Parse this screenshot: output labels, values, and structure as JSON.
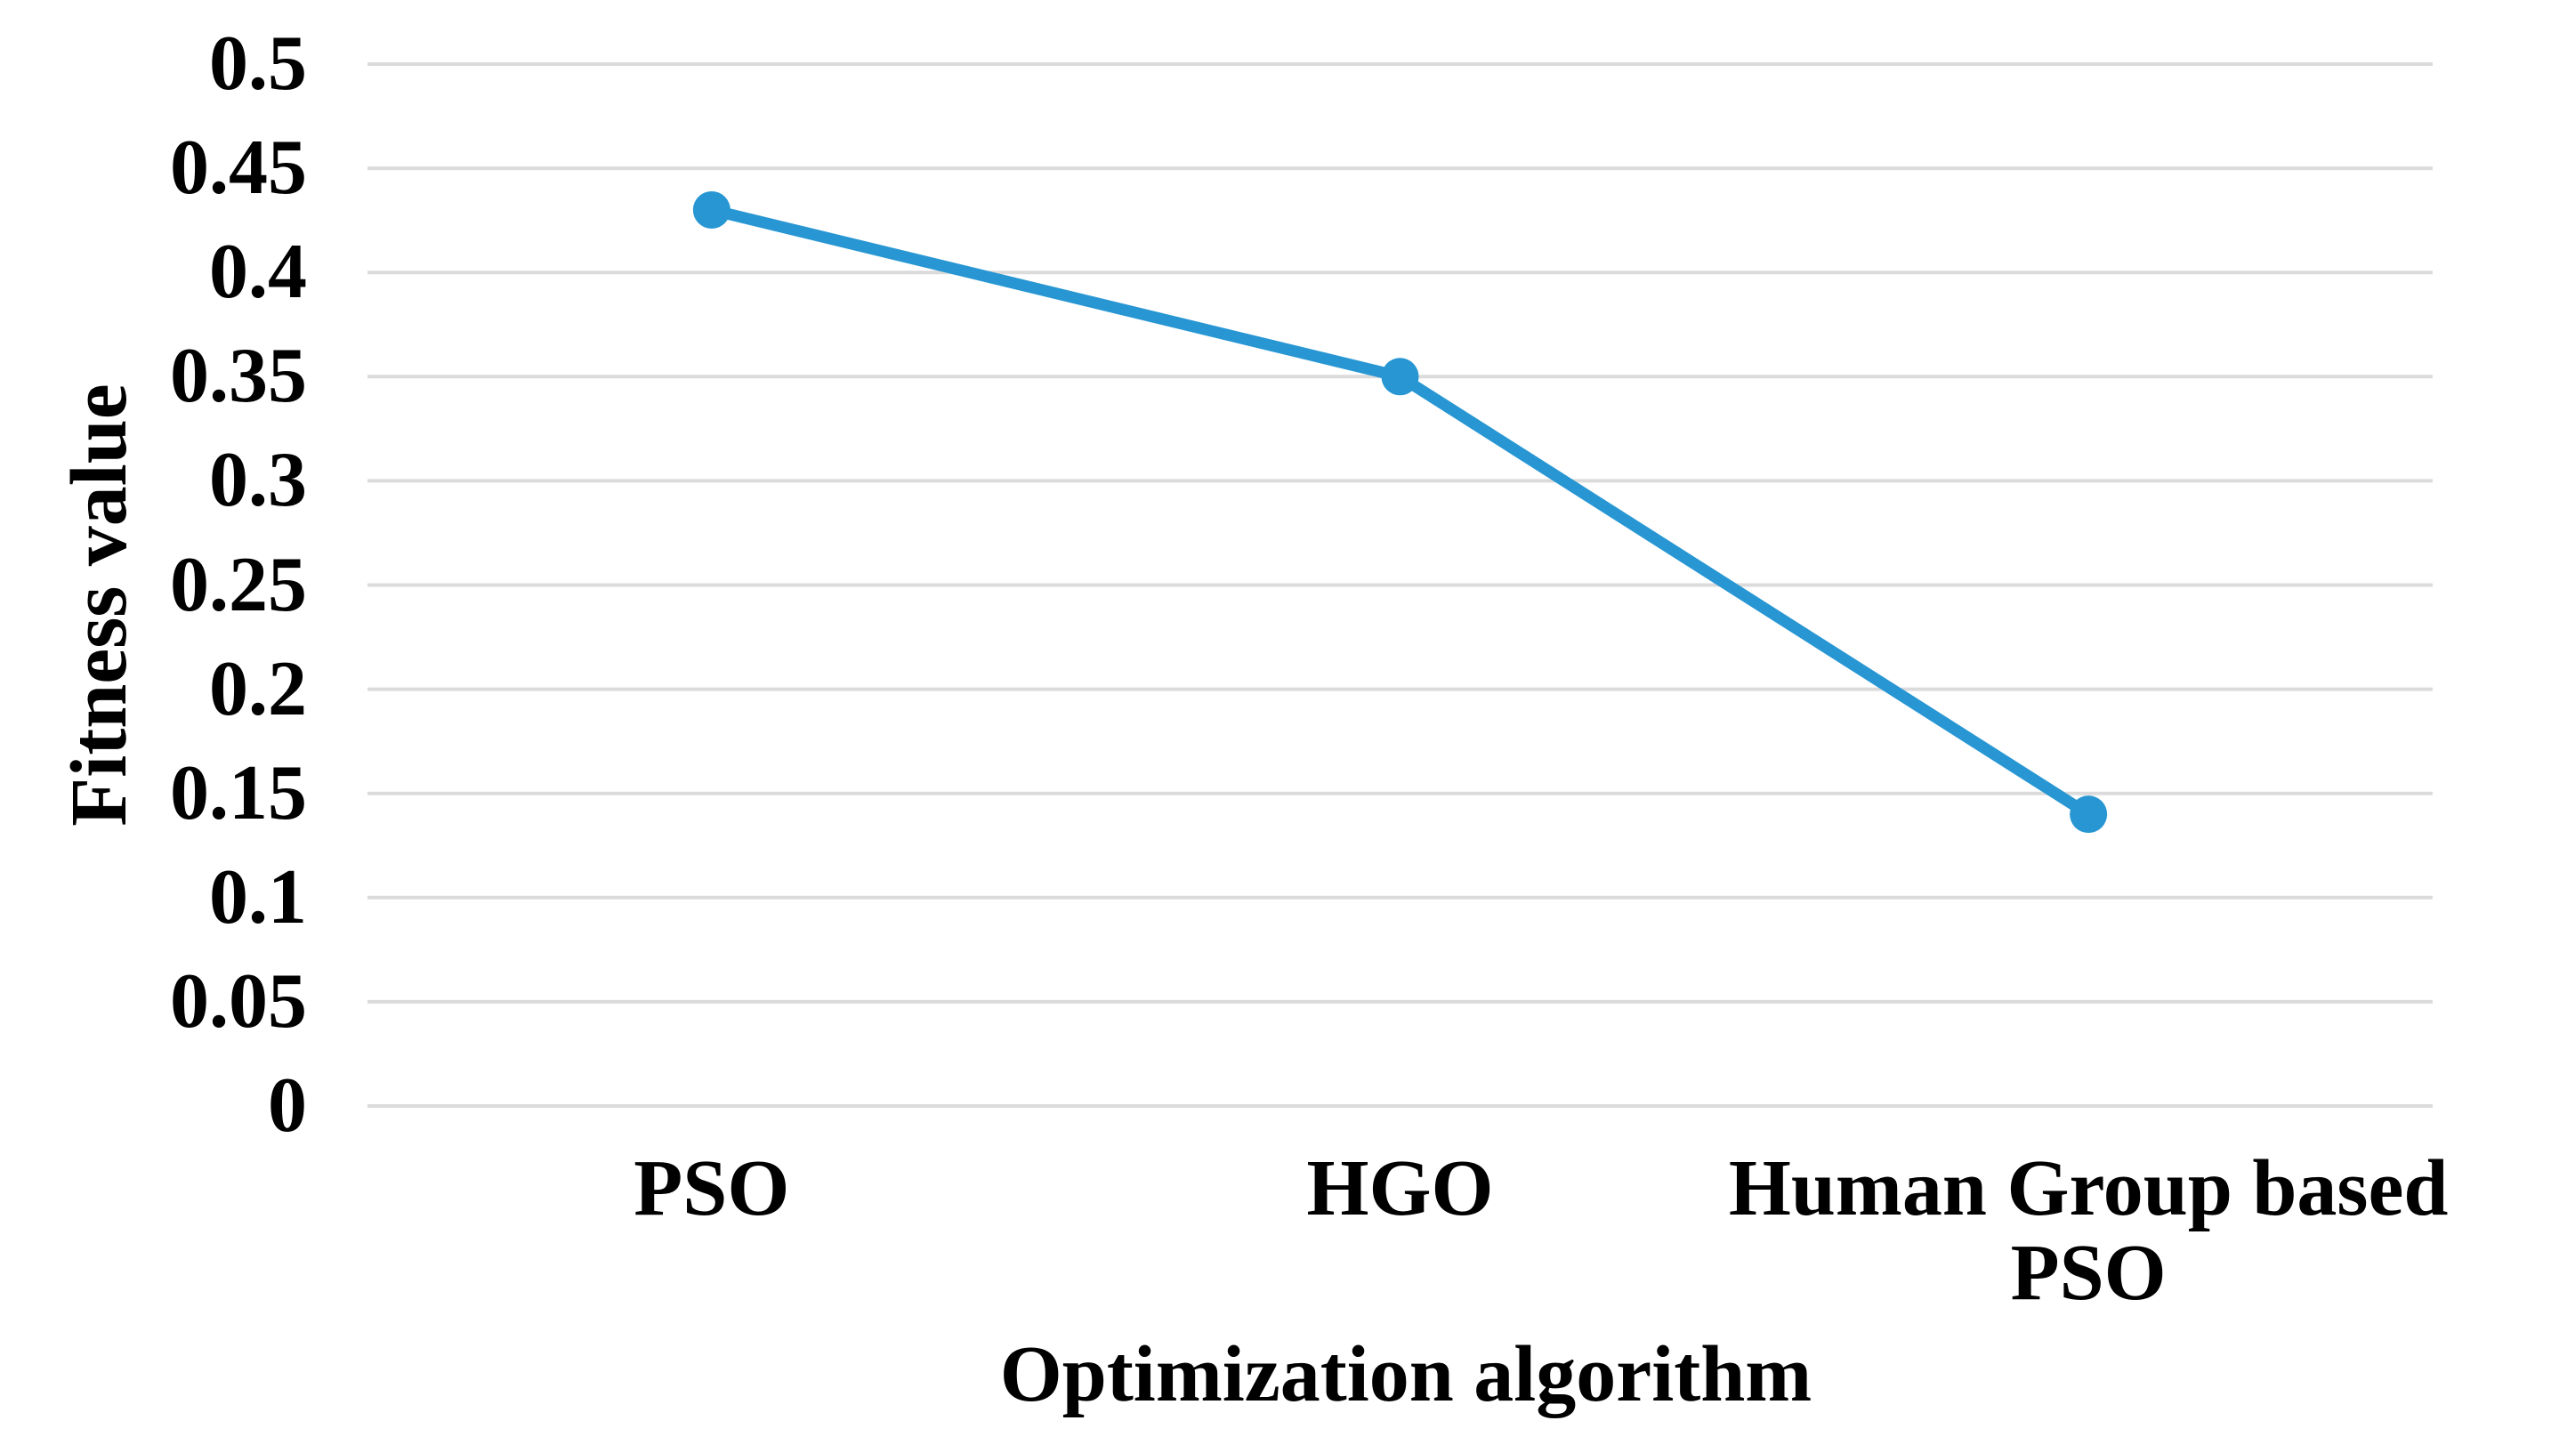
{
  "chart_data": {
    "type": "line",
    "title": "",
    "categories": [
      "PSO",
      "HGO",
      "Human Group based PSO"
    ],
    "series": [
      {
        "name": "Fitness value",
        "values": [
          0.43,
          0.35,
          0.14
        ]
      }
    ],
    "xlabel": "Optimization algorithm",
    "ylabel": "Fitness value",
    "ylim": [
      0,
      0.5
    ],
    "ytick_step": 0.05,
    "yticks": [
      0,
      0.05,
      0.1,
      0.15,
      0.2,
      0.25,
      0.3,
      0.35,
      0.4,
      0.45,
      0.5
    ],
    "ytick_labels": [
      "0",
      "0.05",
      "0.1",
      "0.15",
      "0.2",
      "0.25",
      "0.3",
      "0.35",
      "0.4",
      "0.45",
      "0.5"
    ],
    "grid": "horizontal",
    "legend": "none",
    "marker": "circle",
    "colors": {
      "line": "#2796D3",
      "marker": "#2796D3",
      "gridline": "#DBDBDB",
      "text": "#000000",
      "background": "#FFFFFF"
    }
  }
}
